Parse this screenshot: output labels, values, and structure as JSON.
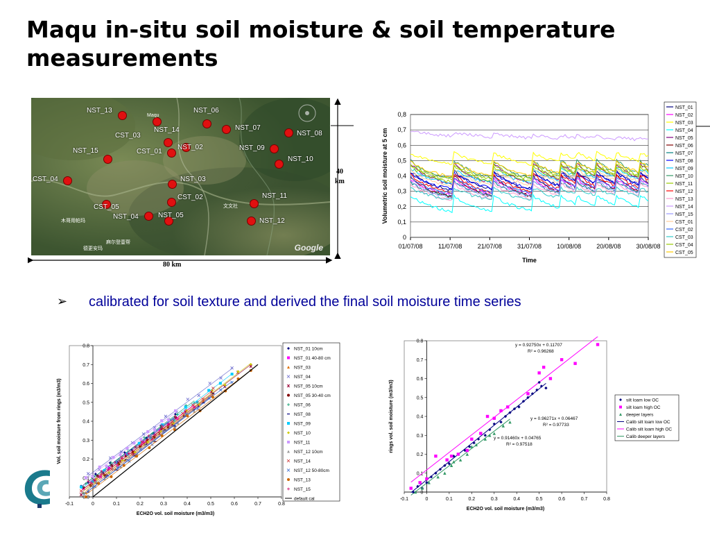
{
  "title": "Maqu in-situ soil moisture & soil temperature measurements",
  "bullet_text": "calibrated for soil texture and derived the final soil moisture time series",
  "map": {
    "stations": [
      {
        "label": "NST_13",
        "lx": 125,
        "ly": 160,
        "dx": 176,
        "dy": 166
      },
      {
        "label": "NST_06",
        "lx": 279,
        "ly": 160,
        "dx": 298,
        "dy": 178
      },
      {
        "label": "NST_14",
        "lx": 222,
        "ly": 188,
        "dx": 226,
        "dy": 175
      },
      {
        "label": "NST_07",
        "lx": 339,
        "ly": 185,
        "dx": 326,
        "dy": 186
      },
      {
        "label": "CST_03",
        "lx": 166,
        "ly": 196,
        "dx": 242,
        "dy": 205
      },
      {
        "label": "NST_08",
        "lx": 428,
        "ly": 193,
        "dx": 416,
        "dy": 191
      },
      {
        "label": "NST_15",
        "lx": 105,
        "ly": 218,
        "dx": 155,
        "dy": 229
      },
      {
        "label": "CST_01",
        "lx": 197,
        "ly": 219,
        "dx": 247,
        "dy": 220
      },
      {
        "label": "NST_02",
        "lx": 256,
        "ly": 213,
        "dx": 268,
        "dy": 212
      },
      {
        "label": "NST_09",
        "lx": 345,
        "ly": 214,
        "dx": 395,
        "dy": 214
      },
      {
        "label": "NST_10",
        "lx": 415,
        "ly": 230,
        "dx": 402,
        "dy": 236
      },
      {
        "label": "CST_04",
        "lx": 47,
        "ly": 259,
        "dx": 97,
        "dy": 260
      },
      {
        "label": "NST_03",
        "lx": 260,
        "ly": 259,
        "dx": 248,
        "dy": 265
      },
      {
        "label": "CST_02",
        "lx": 256,
        "ly": 285,
        "dx": 247,
        "dy": 291
      },
      {
        "label": "NST_11",
        "lx": 378,
        "ly": 283,
        "dx": 366,
        "dy": 293
      },
      {
        "label": "CST_05",
        "lx": 135,
        "ly": 299,
        "dx": 153,
        "dy": 294
      },
      {
        "label": "NST_04",
        "lx": 163,
        "ly": 313,
        "dx": 214,
        "dy": 311
      },
      {
        "label": "NST_05",
        "lx": 228,
        "ly": 311,
        "dx": 243,
        "dy": 318
      },
      {
        "label": "NST_12",
        "lx": 374,
        "ly": 319,
        "dx": 362,
        "dy": 318
      }
    ],
    "towns": [
      {
        "label": "Maqu",
        "x": 212,
        "y": 168
      },
      {
        "label": "文文社",
        "x": 322,
        "y": 297
      },
      {
        "label": "木哥用帕玛",
        "x": 88,
        "y": 318
      },
      {
        "label": "麻尔登壹帮",
        "x": 153,
        "y": 349
      },
      {
        "label": "德更安玛",
        "x": 120,
        "y": 358
      }
    ],
    "provider": "Google",
    "scale_horizontal": "80 km",
    "scale_vertical_1": "40",
    "scale_vertical_2": "km"
  },
  "colors": {
    "title": "#000000",
    "bullet_text": "#000099"
  },
  "chart_data": [
    {
      "type": "line",
      "title": "",
      "xlabel": "Time",
      "ylabel": "Volumetric soil moisture at 5 cm",
      "x_ticks": [
        "01/07/08",
        "11/07/08",
        "21/07/08",
        "31/07/08",
        "10/08/08",
        "20/08/08",
        "30/08/08"
      ],
      "x_range": [
        "01/07/08",
        "30/08/08"
      ],
      "ylim": [
        0,
        0.8
      ],
      "y_ticks": [
        "0",
        "0,1",
        "0,2",
        "0,3",
        "0,4",
        "0,5",
        "0,6",
        "0,7",
        "0,8"
      ],
      "grid": true,
      "legend_position": "right",
      "rain_event_days": [
        11,
        21,
        31,
        38,
        42,
        47,
        52,
        58
      ],
      "series": [
        {
          "name": "NST_01",
          "color": "#000080",
          "start": 0.43,
          "low": 0.22
        },
        {
          "name": "NST_02",
          "color": "#ff00ff",
          "start": 0.38,
          "low": 0.2
        },
        {
          "name": "NST_03",
          "color": "#ffff00",
          "start": 0.55,
          "low": 0.42
        },
        {
          "name": "NST_04",
          "color": "#00ffff",
          "start": 0.27,
          "low": 0.1
        },
        {
          "name": "NST_05",
          "color": "#800080",
          "start": 0.48,
          "low": 0.25
        },
        {
          "name": "NST_06",
          "color": "#800000",
          "start": 0.4,
          "low": 0.16
        },
        {
          "name": "NST_07",
          "color": "#008080",
          "start": 0.36,
          "low": 0.2
        },
        {
          "name": "NST_08",
          "color": "#0000ff",
          "start": 0.42,
          "low": 0.24
        },
        {
          "name": "NST_09",
          "color": "#00ccff",
          "start": 0.45,
          "low": 0.28
        },
        {
          "name": "NST_10",
          "color": "#339966",
          "start": 0.5,
          "low": 0.3
        },
        {
          "name": "NST_11",
          "color": "#99cc00",
          "start": 0.46,
          "low": 0.29
        },
        {
          "name": "NST_12",
          "color": "#ff0000",
          "start": 0.41,
          "low": 0.2
        },
        {
          "name": "NST_13",
          "color": "#ff99cc",
          "start": 0.35,
          "low": 0.17
        },
        {
          "name": "NST_14",
          "color": "#cc99ff",
          "start": 0.66,
          "low": 0.6
        },
        {
          "name": "NST_15",
          "color": "#9999ff",
          "start": 0.37,
          "low": 0.18
        },
        {
          "name": "CST_01",
          "color": "#ffcc99",
          "start": 0.44,
          "low": 0.26
        },
        {
          "name": "CST_02",
          "color": "#3366ff",
          "start": 0.39,
          "low": 0.21
        },
        {
          "name": "CST_03",
          "color": "#33cccc",
          "start": 0.32,
          "low": 0.19
        },
        {
          "name": "CST_04",
          "color": "#99cc00",
          "start": 0.47,
          "low": 0.31
        },
        {
          "name": "CST_05",
          "color": "#ffcc00",
          "start": 0.49,
          "low": 0.33
        }
      ]
    },
    {
      "type": "scatter",
      "title": "",
      "xlabel": "ECH2O vol. soil moisture (m3/m3)",
      "ylabel": "Vol. soil moisture from rings (m3/m3)",
      "xlim": [
        -0.1,
        0.8
      ],
      "ylim": [
        0,
        0.8
      ],
      "x_ticks": [
        "-0.1",
        "0",
        "0.1",
        "0.2",
        "0.3",
        "0.4",
        "0.5",
        "0.6",
        "0.7",
        "0.8"
      ],
      "y_ticks": [
        "0.0",
        "0.1",
        "0.2",
        "0.3",
        "0.4",
        "0.5",
        "0.6",
        "0.7",
        "0.8"
      ],
      "legend_position": "right",
      "series": [
        {
          "name": "NST_01 10cm",
          "marker": "diamond",
          "color": "#000080",
          "slope": 0.93,
          "intercept": 0.1
        },
        {
          "name": "NST_01 40-80 cm",
          "marker": "square",
          "color": "#ff00ff",
          "slope": 0.94,
          "intercept": 0.08
        },
        {
          "name": "NST_03",
          "marker": "triangle",
          "color": "#e07000",
          "slope": 0.95,
          "intercept": 0.06
        },
        {
          "name": "NST_04",
          "marker": "x",
          "color": "#6666cc",
          "slope": 0.93,
          "intercept": 0.13
        },
        {
          "name": "NST_05 10cm",
          "marker": "star",
          "color": "#990033",
          "slope": 0.94,
          "intercept": 0.07
        },
        {
          "name": "NST_05 30-40 cm",
          "marker": "circle",
          "color": "#800000",
          "slope": 0.94,
          "intercept": 0.08
        },
        {
          "name": "NST_06",
          "marker": "plus",
          "color": "#009966",
          "slope": 0.95,
          "intercept": 0.1
        },
        {
          "name": "NST_08",
          "marker": "dash",
          "color": "#000080",
          "slope": 0.96,
          "intercept": 0.05
        },
        {
          "name": "NST_09",
          "marker": "square",
          "color": "#00ccff",
          "slope": 0.95,
          "intercept": 0.09
        },
        {
          "name": "NST_10",
          "marker": "diamond",
          "color": "#cccc00",
          "slope": 0.95,
          "intercept": 0.07
        },
        {
          "name": "NST_11",
          "marker": "square",
          "color": "#cc99ff",
          "slope": 0.93,
          "intercept": 0.12
        },
        {
          "name": "NST_12 10cm",
          "marker": "triangle",
          "color": "#999999",
          "slope": 0.94,
          "intercept": 0.06
        },
        {
          "name": "NST_14",
          "marker": "x",
          "color": "#cc3333",
          "slope": 0.95,
          "intercept": 0.08
        },
        {
          "name": "NST_12 50-80cm",
          "marker": "x",
          "color": "#3366cc",
          "slope": 0.95,
          "intercept": 0.05
        },
        {
          "name": "NST_13",
          "marker": "circle",
          "color": "#cc6600",
          "slope": 0.94,
          "intercept": 0.04
        },
        {
          "name": "NST_15",
          "marker": "plus",
          "color": "#cc0066",
          "slope": 0.94,
          "intercept": 0.09
        },
        {
          "name": "default cal",
          "marker": "line",
          "color": "#000000",
          "slope": 1.0,
          "intercept": 0.0
        }
      ]
    },
    {
      "type": "scatter",
      "title": "",
      "xlabel": "ECH2O vol. soil moisture (m3/m3)",
      "ylabel": "rings vol. soil moisture (m3/m3)",
      "xlim": [
        -0.1,
        0.8
      ],
      "ylim": [
        0,
        0.8
      ],
      "x_ticks": [
        "-0.1",
        "0",
        "0.1",
        "0.2",
        "0.3",
        "0.4",
        "0.5",
        "0.6",
        "0.7",
        "0.8"
      ],
      "y_ticks": [
        "0",
        "0.1",
        "0.2",
        "0.3",
        "0.4",
        "0.5",
        "0.6",
        "0.7",
        "0.8"
      ],
      "legend_position": "right",
      "series": [
        {
          "name": "silt loam low OC",
          "marker": "diamond",
          "color": "#000080"
        },
        {
          "name": "silt loam high OC",
          "marker": "square",
          "color": "#ff00ff"
        },
        {
          "name": "deeper layers",
          "marker": "triangle",
          "color": "#339966"
        },
        {
          "name": "Calib silt loam low OC",
          "marker": "line",
          "color": "#000080",
          "slope": 0.96271,
          "intercept": 0.06467
        },
        {
          "name": "Calib silt loam high OC",
          "marker": "line",
          "color": "#ff00ff",
          "slope": 0.9275,
          "intercept": 0.11707
        },
        {
          "name": "Calib deeper layers",
          "marker": "line",
          "color": "#339966",
          "slope": 0.9146,
          "intercept": 0.04765
        }
      ],
      "points": {
        "silt loam low OC": [
          [
            -0.06,
            0.0
          ],
          [
            -0.04,
            0.03
          ],
          [
            -0.02,
            0.02
          ],
          [
            0.0,
            0.05
          ],
          [
            0.02,
            0.08
          ],
          [
            0.04,
            0.1
          ],
          [
            0.06,
            0.12
          ],
          [
            0.08,
            0.14
          ],
          [
            0.1,
            0.15
          ],
          [
            0.12,
            0.19
          ],
          [
            0.14,
            0.2
          ],
          [
            0.17,
            0.22
          ],
          [
            0.19,
            0.24
          ],
          [
            0.21,
            0.26
          ],
          [
            0.23,
            0.28
          ],
          [
            0.26,
            0.3
          ],
          [
            0.28,
            0.33
          ],
          [
            0.3,
            0.36
          ],
          [
            0.33,
            0.37
          ],
          [
            0.35,
            0.4
          ],
          [
            0.37,
            0.42
          ],
          [
            0.39,
            0.44
          ],
          [
            0.41,
            0.45
          ],
          [
            0.43,
            0.48
          ],
          [
            0.45,
            0.5
          ],
          [
            0.47,
            0.52
          ],
          [
            0.49,
            0.54
          ],
          [
            0.51,
            0.56
          ],
          [
            0.53,
            0.55
          ],
          [
            0.5,
            0.58
          ]
        ],
        "silt loam high OC": [
          [
            -0.07,
            0.02
          ],
          [
            -0.03,
            0.05
          ],
          [
            0.0,
            0.07
          ],
          [
            0.04,
            0.19
          ],
          [
            0.09,
            0.17
          ],
          [
            0.11,
            0.19
          ],
          [
            0.14,
            0.2
          ],
          [
            0.18,
            0.22
          ],
          [
            0.2,
            0.28
          ],
          [
            0.24,
            0.31
          ],
          [
            0.27,
            0.4
          ],
          [
            0.3,
            0.39
          ],
          [
            0.33,
            0.43
          ],
          [
            0.36,
            0.45
          ],
          [
            0.45,
            0.52
          ],
          [
            0.5,
            0.63
          ],
          [
            0.55,
            0.6
          ],
          [
            0.52,
            0.66
          ],
          [
            0.6,
            0.7
          ],
          [
            0.66,
            0.68
          ],
          [
            0.76,
            0.78
          ]
        ],
        "deeper layers": [
          [
            -0.05,
            0.0
          ],
          [
            -0.02,
            0.02
          ],
          [
            0.01,
            0.05
          ],
          [
            0.05,
            0.08
          ],
          [
            0.08,
            0.1
          ],
          [
            0.11,
            0.14
          ],
          [
            0.15,
            0.17
          ],
          [
            0.18,
            0.2
          ],
          [
            0.22,
            0.25
          ],
          [
            0.26,
            0.28
          ],
          [
            0.3,
            0.31
          ],
          [
            0.34,
            0.35
          ],
          [
            0.37,
            0.37
          ],
          [
            0.2,
            0.24
          ],
          [
            0.12,
            0.16
          ],
          [
            0.28,
            0.3
          ]
        ]
      },
      "equations": [
        {
          "text": "y = 0.92750x + 0.11707",
          "r2": "0.96268"
        },
        {
          "text": "y = 0.96271x + 0.06467",
          "r2": "0.97733"
        },
        {
          "text": "y = 0.91460x + 0.04765",
          "r2": "0.97518"
        }
      ]
    }
  ]
}
